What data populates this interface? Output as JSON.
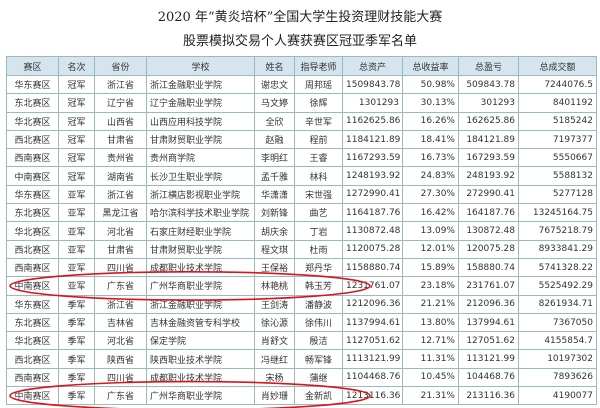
{
  "header": {
    "title": "2020 年“黄炎培杯”全国大学生投资理财技能大赛",
    "subtitle": "股票模拟交易个人赛获赛区冠亚季军名单"
  },
  "table": {
    "columns": [
      "赛区",
      "名次",
      "省份",
      "学校",
      "姓名",
      "指导老师",
      "总资产",
      "总收益率",
      "总盈亏",
      "总成交额"
    ],
    "rows": [
      [
        "华东赛区",
        "冠军",
        "浙江省",
        "浙江金融职业学院",
        "谢忠文",
        "周邦瑶",
        "1509843.78",
        "50.98%",
        "509843.78",
        "7244076.5"
      ],
      [
        "东北赛区",
        "冠军",
        "辽宁省",
        "辽宁金融职业学院",
        "马文婷",
        "徐辉",
        "1301293",
        "30.13%",
        "301293",
        "8401192"
      ],
      [
        "华北赛区",
        "冠军",
        "山西省",
        "山西应用科技学院",
        "全欣",
        "辛世军",
        "1162625.86",
        "16.26%",
        "162625.86",
        "5185242"
      ],
      [
        "西北赛区",
        "冠军",
        "甘肃省",
        "甘肃财贸职业学院",
        "赵融",
        "程前",
        "1184121.89",
        "18.41%",
        "184121.89",
        "7197377"
      ],
      [
        "西南赛区",
        "冠军",
        "贵州省",
        "贵州商学院",
        "李明红",
        "王睿",
        "1167293.59",
        "16.73%",
        "167293.59",
        "5550667"
      ],
      [
        "中南赛区",
        "冠军",
        "湖南省",
        "长沙卫生职业学院",
        "孟千雅",
        "林科",
        "1248193.92",
        "24.83%",
        "248193.92",
        "5588132"
      ],
      [
        "华东赛区",
        "亚军",
        "浙江省",
        "浙江横店影视职业学院",
        "华潇潇",
        "宋世强",
        "1272990.41",
        "27.30%",
        "272990.41",
        "5277128"
      ],
      [
        "东北赛区",
        "亚军",
        "黑龙江省",
        "哈尔滨科学技术职业学院",
        "刘新锋",
        "曲艺",
        "1164187.76",
        "16.42%",
        "164187.76",
        "13245164.75"
      ],
      [
        "华北赛区",
        "亚军",
        "河北省",
        "石家庄财经职业学院",
        "胡庆余",
        "丁岩",
        "1130872.48",
        "13.09%",
        "130872.48",
        "7675218.79"
      ],
      [
        "西北赛区",
        "亚军",
        "甘肃省",
        "甘肃财贸职业学院",
        "程文琪",
        "杜雨",
        "1120075.28",
        "12.01%",
        "120075.28",
        "8933841.29"
      ],
      [
        "西南赛区",
        "亚军",
        "四川省",
        "成都职业技术学院",
        "王保裕",
        "郑丹华",
        "1158880.74",
        "15.89%",
        "158880.74",
        "5741328.22"
      ],
      [
        "中南赛区",
        "亚军",
        "广东省",
        "广州华商职业学院",
        "林艳桃",
        "韩玉芳",
        "1231761.07",
        "23.18%",
        "231761.07",
        "5525492.29"
      ],
      [
        "华东赛区",
        "季军",
        "浙江省",
        "浙江金融职业学院",
        "王剑涛",
        "潘静波",
        "1212096.36",
        "21.21%",
        "212096.36",
        "8261934.71"
      ],
      [
        "东北赛区",
        "季军",
        "吉林省",
        "吉林金融资管专科学校",
        "徐沁源",
        "徐伟川",
        "1137994.61",
        "13.80%",
        "137994.61",
        "7367050"
      ],
      [
        "华北赛区",
        "季军",
        "河北省",
        "保定学院",
        "肖舒文",
        "殷洁",
        "1127051.62",
        "12.71%",
        "127051.62",
        "4155854.7"
      ],
      [
        "西北赛区",
        "季军",
        "陕西省",
        "陕西职业技术学院",
        "冯继红",
        "畅军锋",
        "1113121.99",
        "11.31%",
        "113121.99",
        "10197302"
      ],
      [
        "西南赛区",
        "季军",
        "四川省",
        "成都职业技术学院",
        "宋杨",
        "蒲继",
        "1104468.76",
        "10.45%",
        "104468.76",
        "7893626"
      ],
      [
        "中南赛区",
        "季军",
        "广东省",
        "广州华商职业学院",
        "肖妙珊",
        "金新凯",
        "1213116.36",
        "21.31%",
        "213116.36",
        "4190077"
      ]
    ]
  }
}
